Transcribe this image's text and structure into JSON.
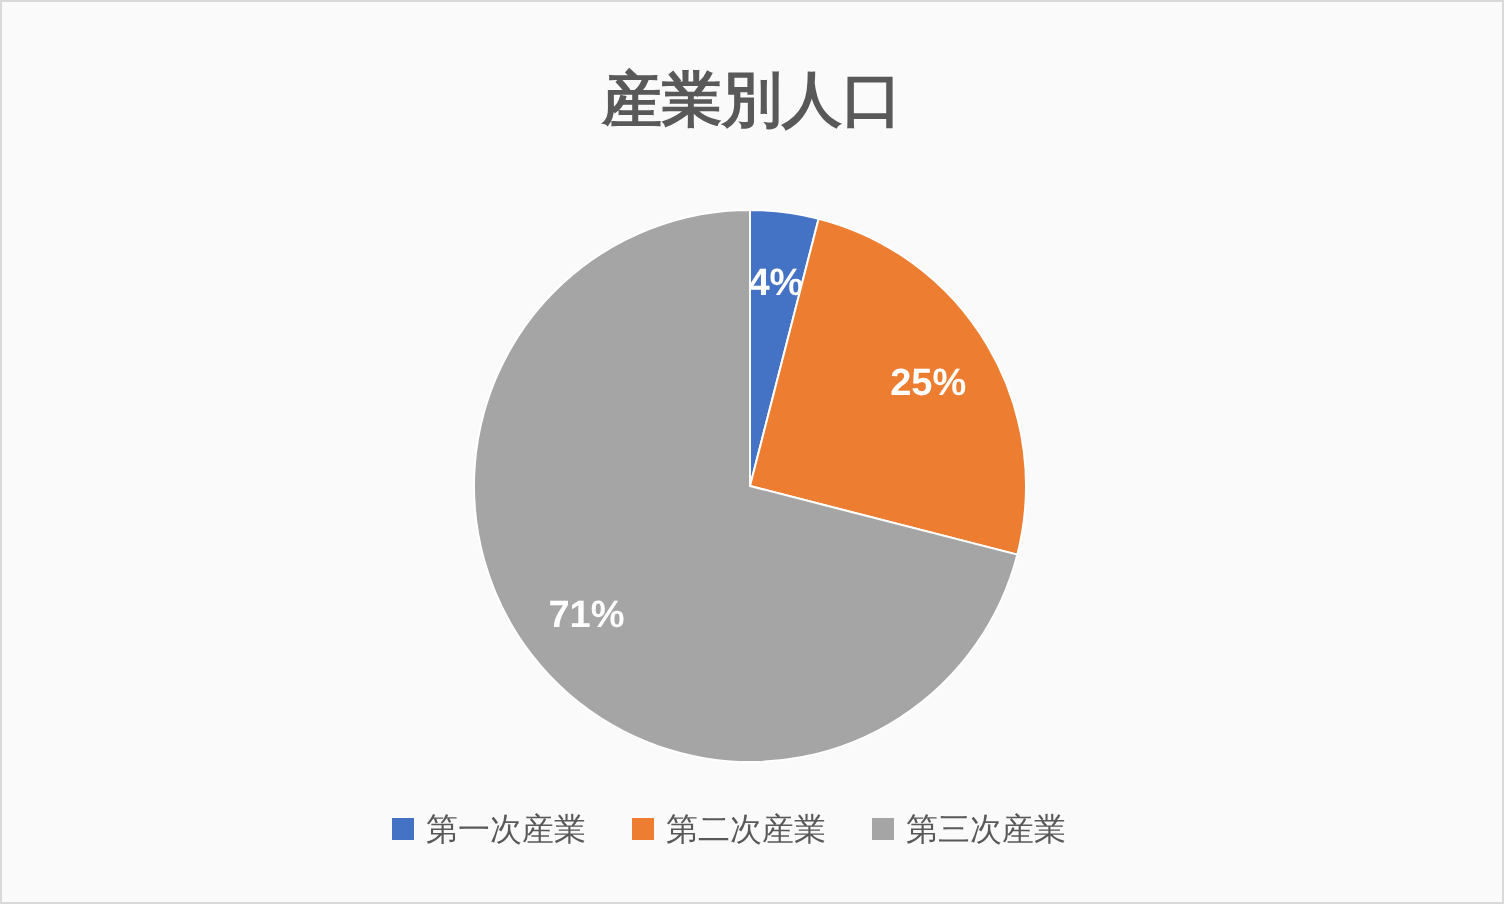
{
  "chart_data": {
    "type": "pie",
    "title": "産業別人口",
    "categories": [
      "第一次産業",
      "第二次産業",
      "第三次産業"
    ],
    "values": [
      4,
      25,
      71
    ],
    "colors": [
      "#4472c4",
      "#ed7d31",
      "#a5a5a5"
    ],
    "value_labels": [
      "4%",
      "25%",
      "71%"
    ],
    "legend": "bottom"
  }
}
